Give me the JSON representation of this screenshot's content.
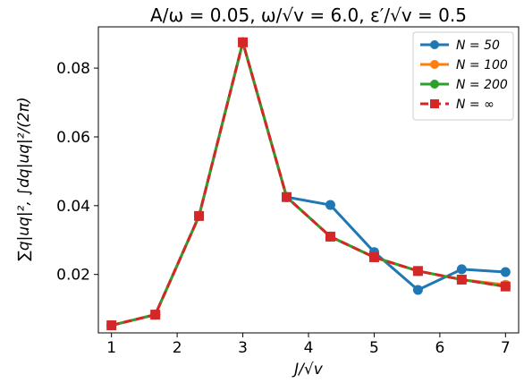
{
  "chart_data": {
    "type": "line",
    "title": "A/ω = 0.05, ω/√v = 6.0, ε′/√v = 0.5",
    "xlabel": "J/√v",
    "ylabel": "∑q|uq|², ∫dq|uq|²/(2π)",
    "xlim": [
      0.8,
      7.2
    ],
    "ylim": [
      0.003,
      0.092
    ],
    "xticks": [
      1,
      2,
      3,
      4,
      5,
      6,
      7
    ],
    "yticks": [
      0.02,
      0.04,
      0.06,
      0.08
    ],
    "ytick_labels": [
      "0.02",
      "0.04",
      "0.06",
      "0.08"
    ],
    "grid": false,
    "legend_position": "top-right",
    "series": [
      {
        "name": "N = 50",
        "color": "#1f77b4",
        "marker": "circle",
        "dashed": false,
        "x": [
          1.0,
          1.667,
          2.333,
          3.0,
          3.667,
          4.333,
          5.0,
          5.667,
          6.333,
          7.0
        ],
        "values": [
          0.0052,
          0.0083,
          0.037,
          0.0875,
          0.0425,
          0.0402,
          0.0265,
          0.0155,
          0.0215,
          0.0207
        ]
      },
      {
        "name": "N = 100",
        "color": "#ff7f0e",
        "marker": "circle",
        "dashed": false,
        "x": [
          1.0,
          1.667,
          2.333,
          3.0,
          3.667,
          4.333,
          5.0,
          5.667,
          6.333,
          7.0
        ],
        "values": [
          0.0052,
          0.0083,
          0.037,
          0.0875,
          0.0425,
          0.031,
          0.025,
          0.021,
          0.0185,
          0.017
        ]
      },
      {
        "name": "N = 200",
        "color": "#2ca02c",
        "marker": "circle",
        "dashed": false,
        "x": [
          1.0,
          1.667,
          2.333,
          3.0,
          3.667,
          4.333,
          5.0,
          5.667,
          6.333,
          7.0
        ],
        "values": [
          0.0052,
          0.0083,
          0.037,
          0.0875,
          0.0425,
          0.031,
          0.025,
          0.021,
          0.0185,
          0.0165
        ]
      },
      {
        "name": "N = ∞",
        "color": "#d62728",
        "marker": "square",
        "dashed": true,
        "x": [
          1.0,
          1.667,
          2.333,
          3.0,
          3.667,
          4.333,
          5.0,
          5.667,
          6.333,
          7.0
        ],
        "values": [
          0.0052,
          0.0083,
          0.037,
          0.0875,
          0.0425,
          0.031,
          0.025,
          0.021,
          0.0185,
          0.0165
        ]
      }
    ]
  }
}
